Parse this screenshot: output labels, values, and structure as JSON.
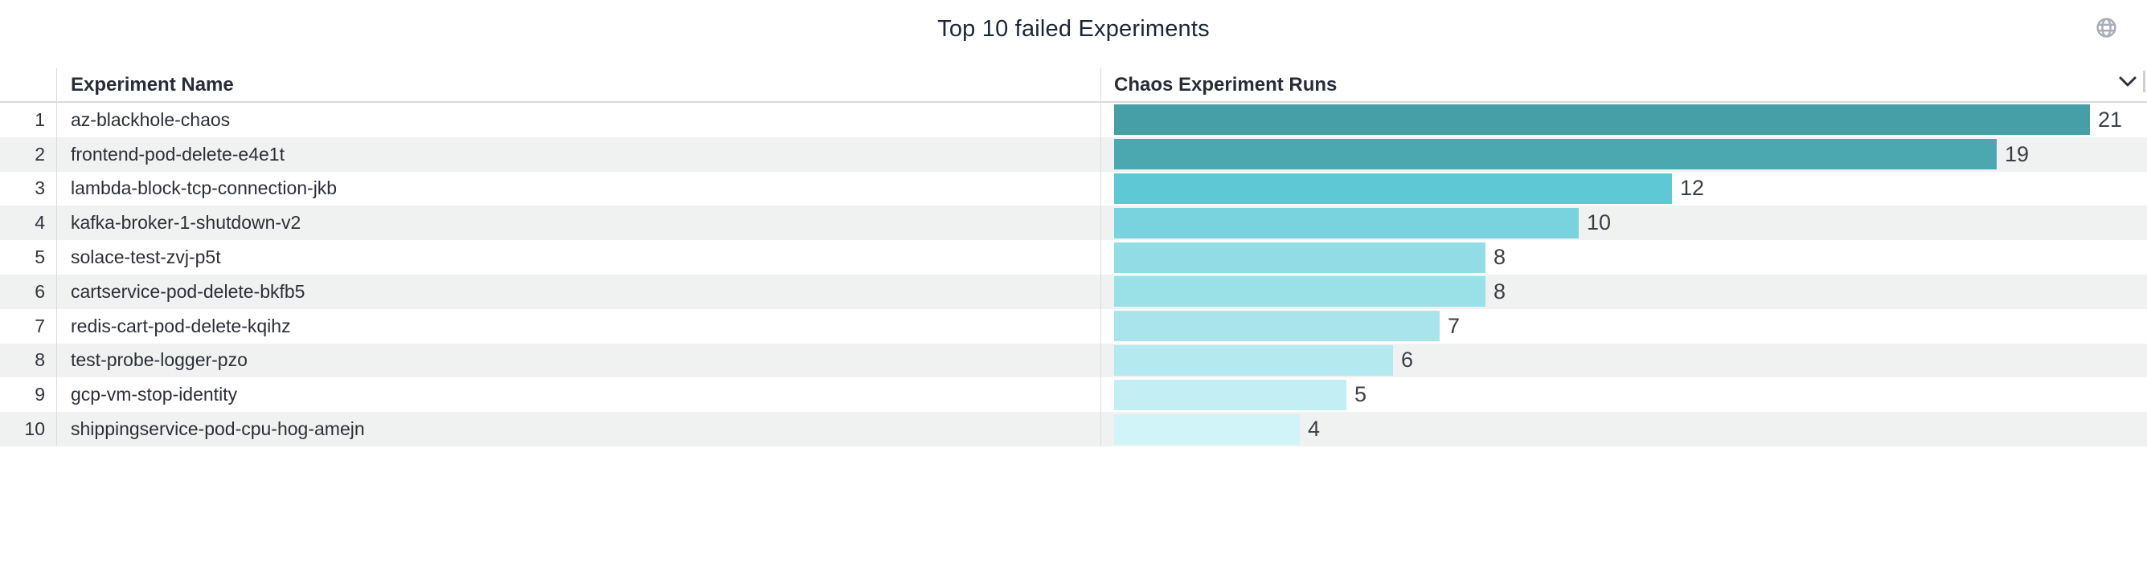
{
  "header": {
    "title": "Top 10 failed Experiments",
    "globe_icon": "globe-icon",
    "chevron_icon": "chevron-down-icon"
  },
  "table": {
    "col_experiment": "Experiment Name",
    "col_runs": "Chaos Experiment Runs",
    "rows": [
      {
        "rank": "1",
        "name": "az-blackhole-chaos",
        "value": 21,
        "color": "#469fa7"
      },
      {
        "rank": "2",
        "name": "frontend-pod-delete-e4e1t",
        "value": 19,
        "color": "#4ba8b1"
      },
      {
        "rank": "3",
        "name": "lambda-block-tcp-connection-jkb",
        "value": 12,
        "color": "#5ec9d4"
      },
      {
        "rank": "4",
        "name": "kafka-broker-1-shutdown-v2",
        "value": 10,
        "color": "#78d3de"
      },
      {
        "rank": "5",
        "name": "solace-test-zvj-p5t",
        "value": 8,
        "color": "#92dde5"
      },
      {
        "rank": "6",
        "name": "cartservice-pod-delete-bkfb5",
        "value": 8,
        "color": "#9ae0e7"
      },
      {
        "rank": "7",
        "name": "redis-cart-pod-delete-kqihz",
        "value": 7,
        "color": "#a8e4ea"
      },
      {
        "rank": "8",
        "name": "test-probe-logger-pzo",
        "value": 6,
        "color": "#b4e9ef"
      },
      {
        "rank": "9",
        "name": "gcp-vm-stop-identity",
        "value": 5,
        "color": "#c3eef4"
      },
      {
        "rank": "10",
        "name": "shippingservice-pod-cpu-hog-amejn",
        "value": 4,
        "color": "#d1f4f9"
      }
    ]
  },
  "chart_data": {
    "type": "bar",
    "orientation": "horizontal",
    "title": "Top 10 failed Experiments",
    "xlabel": "Chaos Experiment Runs",
    "ylabel": "Experiment Name",
    "categories": [
      "az-blackhole-chaos",
      "frontend-pod-delete-e4e1t",
      "lambda-block-tcp-connection-jkb",
      "kafka-broker-1-shutdown-v2",
      "solace-test-zvj-p5t",
      "cartservice-pod-delete-bkfb5",
      "redis-cart-pod-delete-kqihz",
      "test-probe-logger-pzo",
      "gcp-vm-stop-identity",
      "shippingservice-pod-cpu-hog-amejn"
    ],
    "values": [
      21,
      19,
      12,
      10,
      8,
      8,
      7,
      6,
      5,
      4
    ],
    "xlim": [
      0,
      21
    ],
    "grid": false,
    "legend": false,
    "value_labels": "end-of-bar",
    "bar_colors": [
      "#469fa7",
      "#4ba8b1",
      "#5ec9d4",
      "#78d3de",
      "#92dde5",
      "#9ae0e7",
      "#a8e4ea",
      "#b4e9ef",
      "#c3eef4",
      "#d1f4f9"
    ]
  },
  "colors": {
    "row_stripe": "#f0f1f1",
    "divider": "#d8dadc",
    "title_text": "#1b2638",
    "header_text": "#272d37",
    "body_text": "#2b3037",
    "value_text": "#3a3f45",
    "globe_icon": "#a7aeb9",
    "chevron_icon": "#2c323c"
  }
}
